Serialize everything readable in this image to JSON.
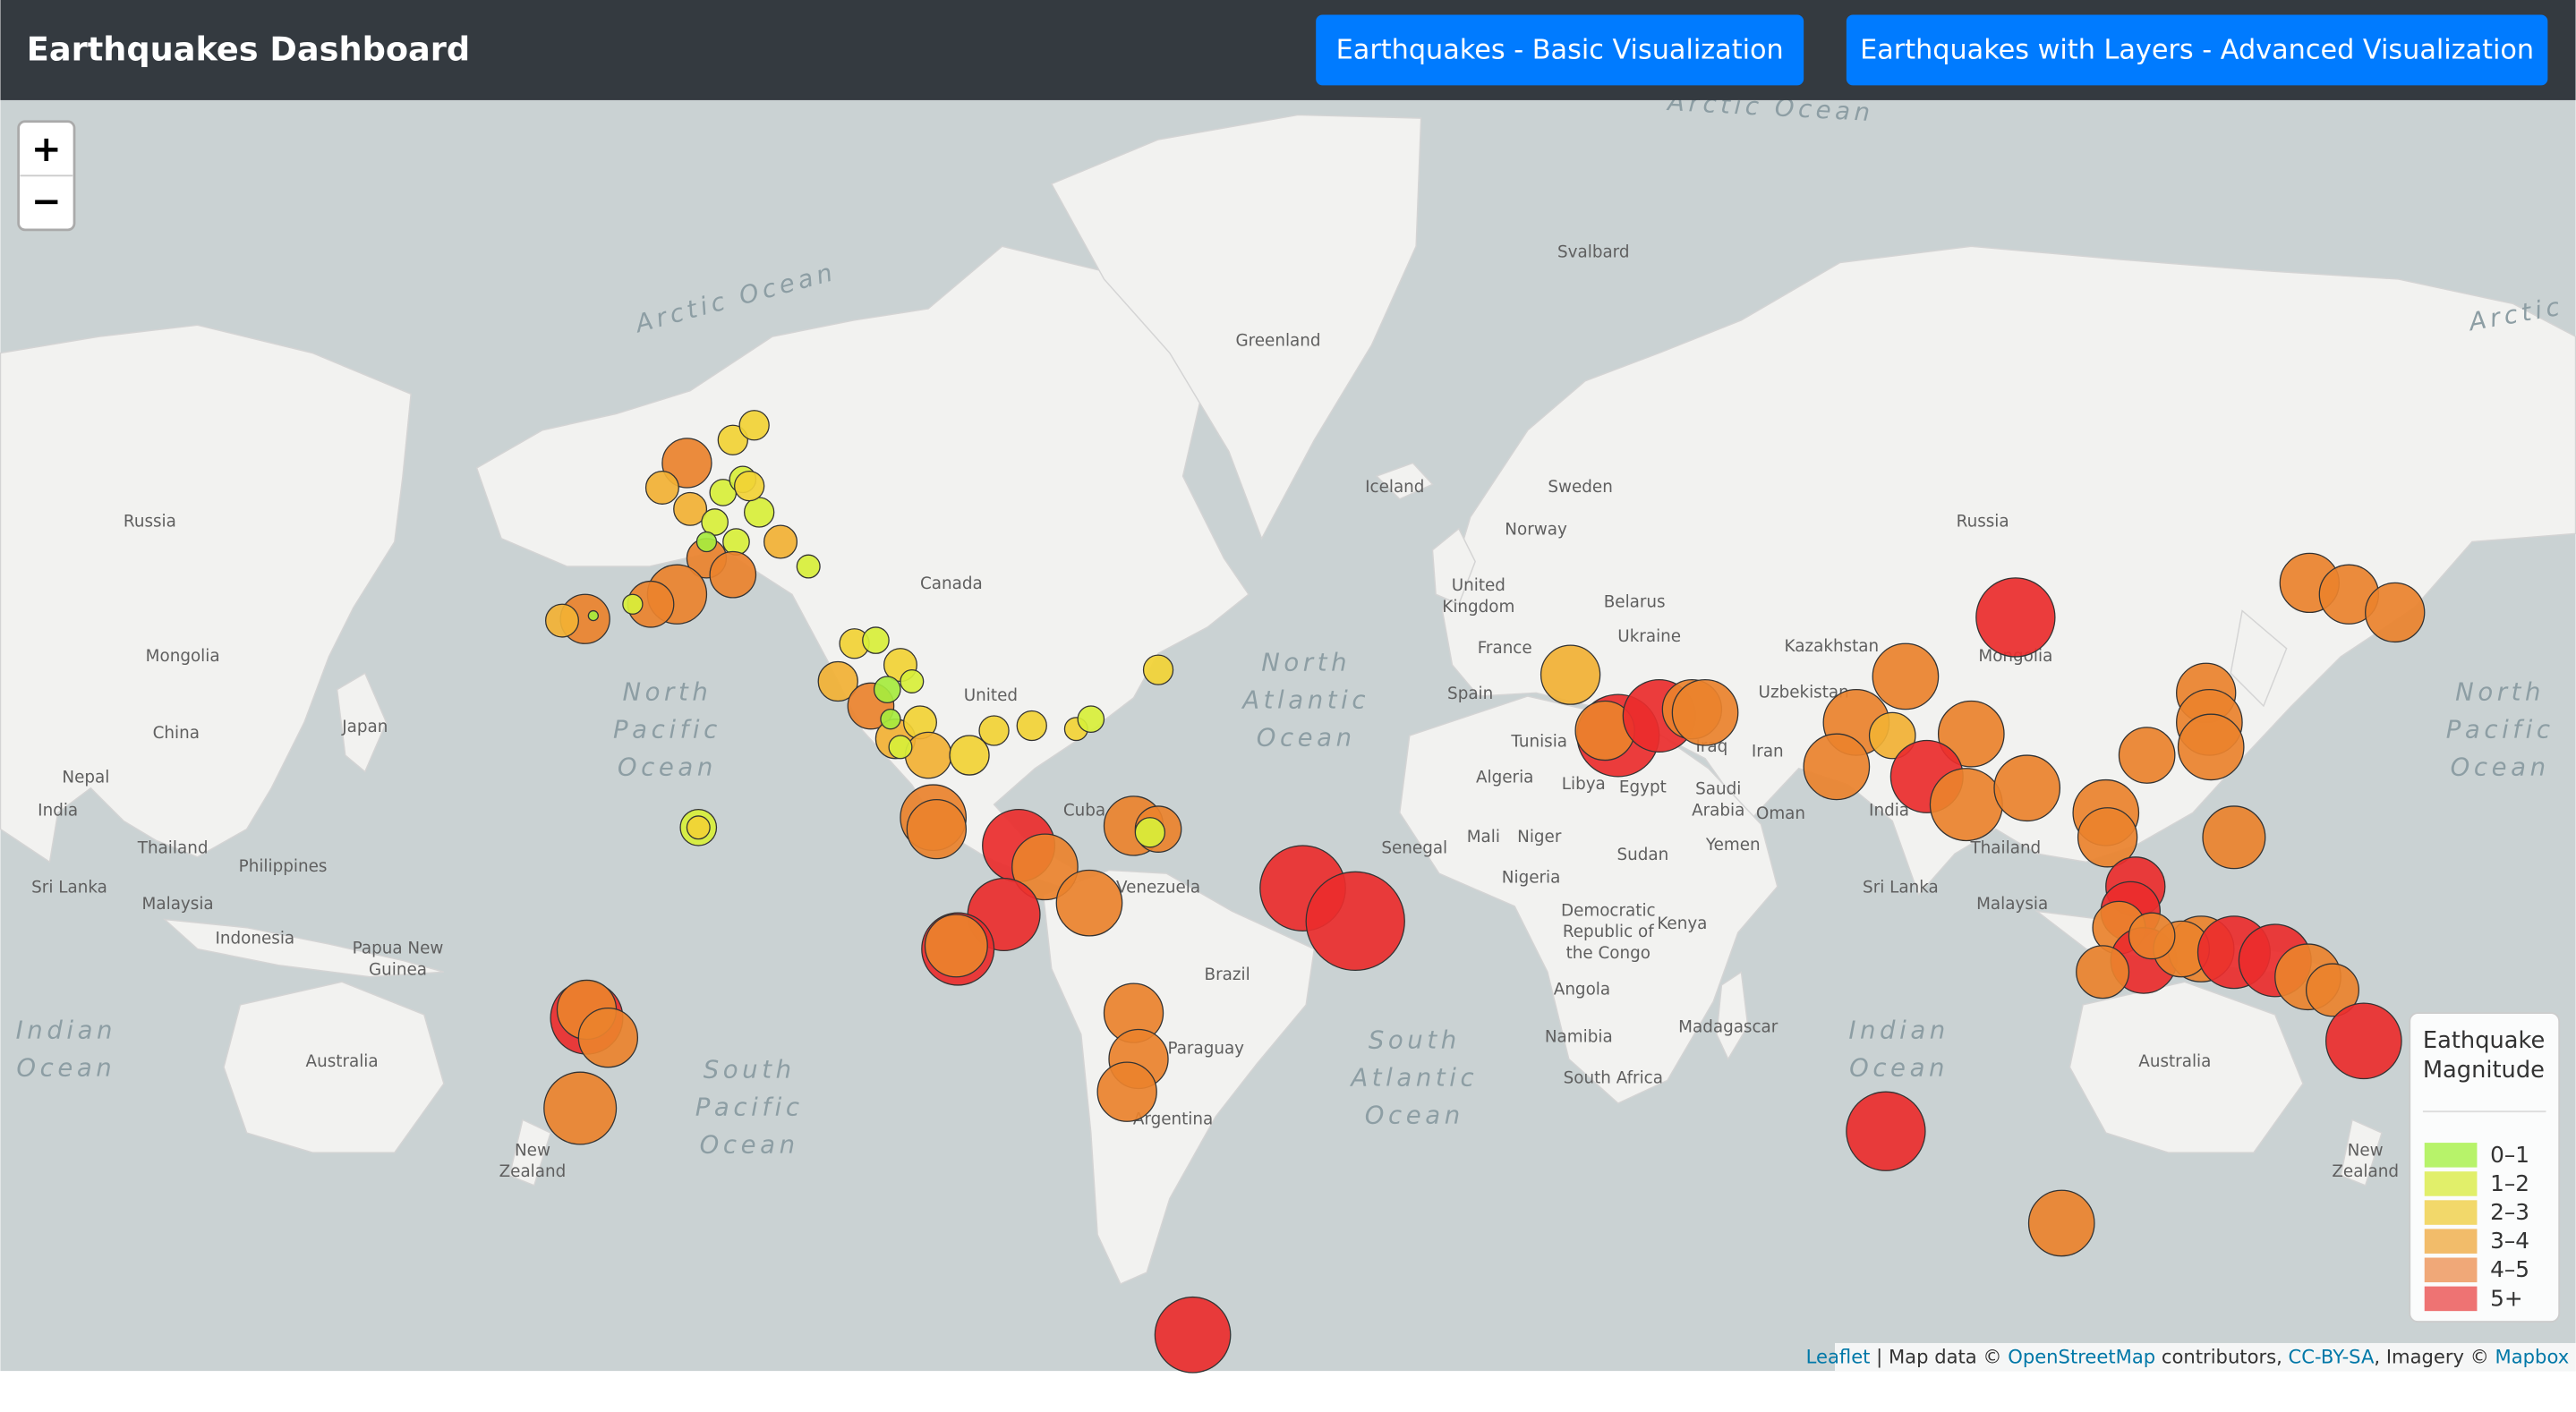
{
  "navbar": {
    "title": "Earthquakes Dashboard",
    "buttons": [
      "Earthquakes - Basic Visualization",
      "Earthquakes with Layers - Advanced Visualization"
    ]
  },
  "map": {
    "zoom_controls": [
      "+",
      "−"
    ],
    "ocean_labels": [
      [
        "Arctic Ocean"
      ],
      [
        "Arctic Ocean"
      ],
      [
        "Arctic"
      ],
      [
        "North",
        "Pacific",
        "Ocean"
      ],
      [
        "North",
        "Atlantic",
        "Ocean"
      ],
      [
        "North",
        "Pacific",
        "Ocean"
      ],
      [
        "Indian",
        "Ocean"
      ],
      [
        "South",
        "Pacific",
        "Ocean"
      ],
      [
        "South",
        "Atlantic",
        "Ocean"
      ],
      [
        "Indian",
        "Ocean"
      ]
    ],
    "place_labels": [
      [
        "Russia"
      ],
      [
        "Mongolia"
      ],
      [
        "China"
      ],
      [
        "Japan"
      ],
      [
        "Nepal"
      ],
      [
        "India"
      ],
      [
        "Thailand"
      ],
      [
        "Philippines"
      ],
      [
        "Sri Lanka"
      ],
      [
        "Malaysia"
      ],
      [
        "Indonesia"
      ],
      [
        "Papua New",
        "Guinea"
      ],
      [
        "Australia"
      ],
      [
        "New",
        "Zealand"
      ],
      [
        "Greenland"
      ],
      [
        "Svalbard"
      ],
      [
        "Iceland"
      ],
      [
        "Sweden"
      ],
      [
        "Norway"
      ],
      [
        "Canada"
      ],
      [
        "United",
        "Kingdom"
      ],
      [
        "Belarus"
      ],
      [
        "Ukraine"
      ],
      [
        "France"
      ],
      [
        "Spain"
      ],
      [
        "Kazakhstan"
      ],
      [
        "Uzbekistan"
      ],
      [
        "Mongolia"
      ],
      [
        "Russia"
      ],
      [
        "Tunisia"
      ],
      [
        "Iraq"
      ],
      [
        "Iran"
      ],
      [
        "Algeria"
      ],
      [
        "Libya"
      ],
      [
        "Egypt"
      ],
      [
        "Saudi",
        "Arabia"
      ],
      [
        "Oman"
      ],
      [
        "Yemen"
      ],
      [
        "Senegal"
      ],
      [
        "Mali"
      ],
      [
        "Niger"
      ],
      [
        "Sudan"
      ],
      [
        "Nigeria"
      ],
      [
        "Democratic",
        "Republic of",
        "the Congo"
      ],
      [
        "Kenya"
      ],
      [
        "Angola"
      ],
      [
        "Madagascar"
      ],
      [
        "Namibia"
      ],
      [
        "South Africa"
      ],
      [
        "India"
      ],
      [
        "Sri Lanka"
      ],
      [
        "Thailand"
      ],
      [
        "Malaysia"
      ],
      [
        "Australia"
      ],
      [
        "New",
        "Zealand"
      ],
      [
        "Brazil"
      ],
      [
        "Venezuela"
      ],
      [
        "Cuba"
      ],
      [
        "United"
      ],
      [
        "Paraguay"
      ],
      [
        "Argentina"
      ]
    ],
    "legend": {
      "title": [
        "Eathquake",
        "Magnitude"
      ],
      "items": [
        {
          "label": "0–1",
          "color": "#b7f36a"
        },
        {
          "label": "1–2",
          "color": "#e1ef6a"
        },
        {
          "label": "2–3",
          "color": "#f2d86a"
        },
        {
          "label": "3–4",
          "color": "#f2bc6a"
        },
        {
          "label": "4–5",
          "color": "#f0a878"
        },
        {
          "label": "5+",
          "color": "#ee7373"
        }
      ]
    },
    "attribution": [
      {
        "text": "Leaflet",
        "link": true
      },
      {
        "text": " | Map data © ",
        "link": false
      },
      {
        "text": "OpenStreetMap",
        "link": true
      },
      {
        "text": " contributors, ",
        "link": false
      },
      {
        "text": "CC-BY-SA",
        "link": true
      },
      {
        "text": ", Imagery © ",
        "link": false
      },
      {
        "text": "Mapbox",
        "link": true
      }
    ]
  }
}
